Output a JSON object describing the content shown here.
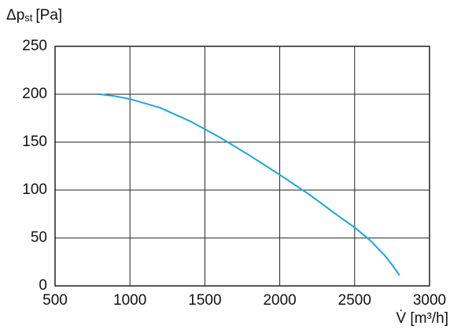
{
  "chart_data": {
    "type": "line",
    "y_label": {
      "symbol": "Δp",
      "subscript": "st",
      "unit": "[Pa]"
    },
    "x_label": "V̇ [m³/h]",
    "x": [
      790,
      800,
      900,
      1000,
      1200,
      1400,
      1600,
      1800,
      2000,
      2200,
      2400,
      2500,
      2600,
      2700,
      2750,
      2800
    ],
    "series": [
      {
        "color": "#1ba6e0",
        "values": [
          200,
          200,
          198,
          195,
          186,
          172,
          155,
          136,
          116,
          95,
          72,
          61,
          48,
          32,
          22,
          11
        ]
      }
    ],
    "xlim": [
      500,
      3000
    ],
    "xticks": [
      500,
      1000,
      1500,
      2000,
      2500,
      3000
    ],
    "ylim": [
      0,
      250
    ],
    "yticks": [
      0,
      50,
      100,
      150,
      200,
      250
    ],
    "grid": true
  }
}
